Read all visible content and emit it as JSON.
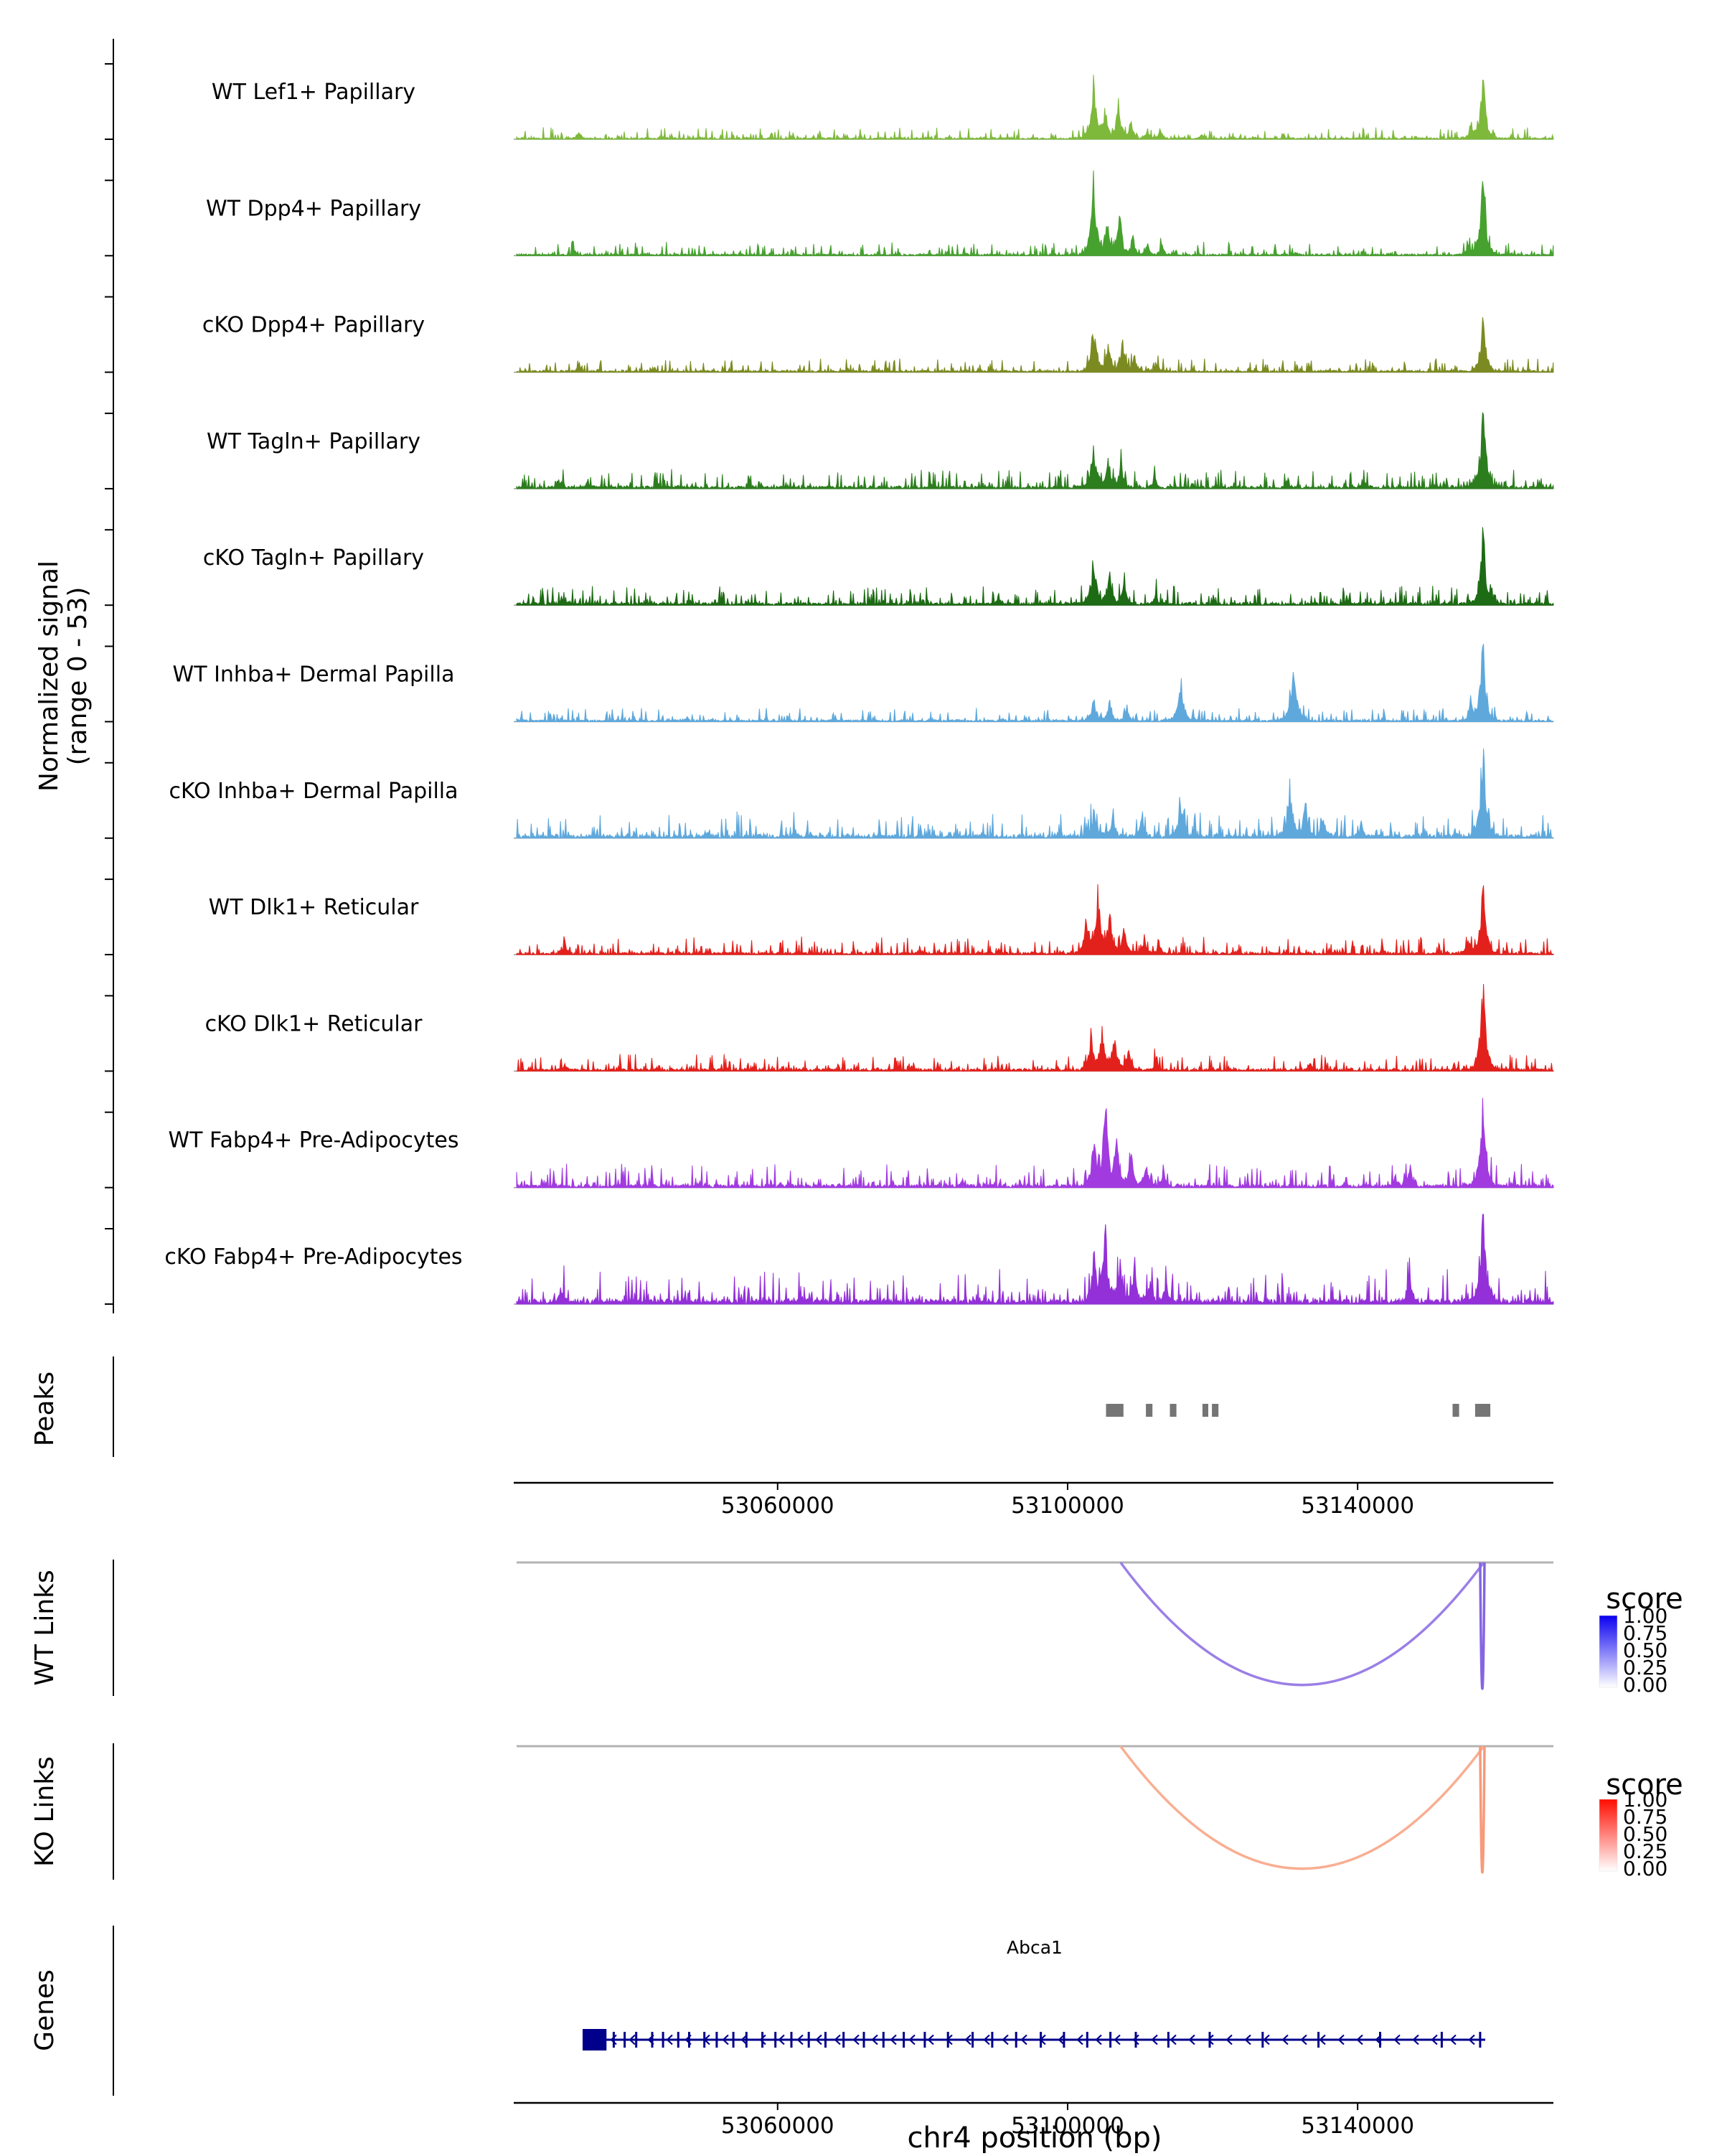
{
  "labels": {
    "signal_axis_line1": "Normalized signal",
    "signal_axis_line2": "(range 0 - 53)",
    "peaks": "Peaks",
    "wt_links": "WT Links",
    "ko_links": "KO Links",
    "genes": "Genes",
    "x_axis_title": "chr4 position (bp)"
  },
  "chart_data": {
    "type": "area",
    "description": "Single-cell ATAC-seq coverage tracks at the Abca1 locus with called peaks, WT and KO co-accessibility links, and gene annotation",
    "region": {
      "chrom": "chr4",
      "start": 53024000,
      "end": 53167000
    },
    "signal_range": "0 - 53",
    "axis_ticks": [
      {
        "bp": 53060000,
        "label": "53060000"
      },
      {
        "bp": 53100000,
        "label": "53100000"
      },
      {
        "bp": 53140000,
        "label": "53140000"
      }
    ],
    "tracks": [
      {
        "label": "WT Lef1+ Papillary",
        "color": "#7EB93C",
        "noise": 0.03,
        "peaks": [
          [
            53032600,
            0.1,
            250
          ],
          [
            53103600,
            0.55,
            450
          ],
          [
            53105200,
            0.28,
            350
          ],
          [
            53107000,
            0.38,
            380
          ],
          [
            53108800,
            0.16,
            300
          ],
          [
            53111000,
            0.1,
            250
          ],
          [
            53112800,
            0.12,
            250
          ],
          [
            53118500,
            0.06,
            250
          ],
          [
            53155600,
            0.18,
            260
          ],
          [
            53157300,
            0.72,
            420
          ]
        ]
      },
      {
        "label": "WT Dpp4+ Papillary",
        "color": "#46A12E",
        "noise": 0.035,
        "peaks": [
          [
            53032000,
            0.06,
            250
          ],
          [
            53103600,
            0.8,
            450
          ],
          [
            53105400,
            0.34,
            350
          ],
          [
            53107200,
            0.42,
            380
          ],
          [
            53109000,
            0.2,
            300
          ],
          [
            53111000,
            0.14,
            250
          ],
          [
            53113000,
            0.16,
            250
          ],
          [
            53155200,
            0.14,
            260
          ],
          [
            53157300,
            0.85,
            430
          ]
        ]
      },
      {
        "label": "cKO Dpp4+ Papillary",
        "color": "#7C8B21",
        "noise": 0.035,
        "peaks": [
          [
            53032600,
            0.08,
            250
          ],
          [
            53103600,
            0.46,
            450
          ],
          [
            53105600,
            0.3,
            350
          ],
          [
            53107600,
            0.34,
            380
          ],
          [
            53109200,
            0.16,
            300
          ],
          [
            53112400,
            0.1,
            250
          ],
          [
            53157300,
            0.56,
            420
          ]
        ]
      },
      {
        "label": "WT Tagln+ Papillary",
        "color": "#2C7D1E",
        "noise": 0.05,
        "peaks": [
          [
            53029800,
            0.1,
            300
          ],
          [
            53033800,
            0.08,
            250
          ],
          [
            53103600,
            0.46,
            450
          ],
          [
            53105600,
            0.3,
            350
          ],
          [
            53107400,
            0.26,
            350
          ],
          [
            53112000,
            0.14,
            250
          ],
          [
            53130500,
            0.07,
            250
          ],
          [
            53141000,
            0.07,
            250
          ],
          [
            53157300,
            0.95,
            430
          ]
        ]
      },
      {
        "label": "cKO Tagln+ Papillary",
        "color": "#1D6B14",
        "noise": 0.05,
        "peaks": [
          [
            53030200,
            0.07,
            250
          ],
          [
            53090500,
            0.07,
            250
          ],
          [
            53103600,
            0.5,
            450
          ],
          [
            53105800,
            0.3,
            350
          ],
          [
            53107800,
            0.24,
            350
          ],
          [
            53112200,
            0.12,
            250
          ],
          [
            53157300,
            0.8,
            430
          ]
        ]
      },
      {
        "label": "WT Inhba+ Dermal Papilla",
        "color": "#5FA8DC",
        "noise": 0.035,
        "peaks": [
          [
            53047500,
            0.05,
            250
          ],
          [
            53103600,
            0.24,
            400
          ],
          [
            53105800,
            0.2,
            350
          ],
          [
            53108200,
            0.14,
            350
          ],
          [
            53115600,
            0.45,
            420
          ],
          [
            53131200,
            0.5,
            520
          ],
          [
            53155600,
            0.22,
            280
          ],
          [
            53157300,
            0.88,
            430
          ]
        ]
      },
      {
        "label": "cKO Inhba+ Dermal Papilla",
        "color": "#5FA8DC",
        "noise": 0.065,
        "peaks": [
          [
            53050500,
            0.07,
            250
          ],
          [
            53062500,
            0.07,
            250
          ],
          [
            53103600,
            0.3,
            400
          ],
          [
            53106200,
            0.24,
            350
          ],
          [
            53110200,
            0.18,
            350
          ],
          [
            53115600,
            0.34,
            420
          ],
          [
            53130600,
            0.56,
            420
          ],
          [
            53132800,
            0.4,
            350
          ],
          [
            53135200,
            0.24,
            350
          ],
          [
            53140500,
            0.14,
            300
          ],
          [
            53157300,
            0.95,
            430
          ]
        ]
      },
      {
        "label": "WT Dlk1+ Reticular",
        "color": "#E3211C",
        "noise": 0.045,
        "peaks": [
          [
            53030600,
            0.12,
            260
          ],
          [
            53090500,
            0.05,
            250
          ],
          [
            53102600,
            0.38,
            380
          ],
          [
            53104200,
            0.62,
            400
          ],
          [
            53105800,
            0.44,
            380
          ],
          [
            53107800,
            0.3,
            360
          ],
          [
            53110600,
            0.18,
            300
          ],
          [
            53112600,
            0.13,
            260
          ],
          [
            53143500,
            0.07,
            250
          ],
          [
            53155200,
            0.18,
            270
          ],
          [
            53157300,
            0.74,
            420
          ]
        ]
      },
      {
        "label": "cKO Dlk1+ Reticular",
        "color": "#E3211C",
        "noise": 0.045,
        "peaks": [
          [
            53030600,
            0.08,
            250
          ],
          [
            53103200,
            0.36,
            380
          ],
          [
            53104800,
            0.47,
            400
          ],
          [
            53106400,
            0.4,
            380
          ],
          [
            53108400,
            0.25,
            360
          ],
          [
            53112200,
            0.14,
            260
          ],
          [
            53133500,
            0.09,
            250
          ],
          [
            53157300,
            0.95,
            420
          ]
        ]
      },
      {
        "label": "WT Fabp4+ Pre-Adipocytes",
        "color": "#A13BE0",
        "noise": 0.06,
        "peaks": [
          [
            53060500,
            0.05,
            250
          ],
          [
            53085500,
            0.07,
            250
          ],
          [
            53103600,
            0.55,
            380
          ],
          [
            53105200,
            0.92,
            420
          ],
          [
            53106800,
            0.46,
            380
          ],
          [
            53108800,
            0.34,
            360
          ],
          [
            53110800,
            0.25,
            330
          ],
          [
            53113200,
            0.19,
            280
          ],
          [
            53145200,
            0.13,
            260
          ],
          [
            53147200,
            0.25,
            330
          ],
          [
            53157300,
            1.0,
            430
          ]
        ]
      },
      {
        "label": "cKO Fabp4+ Pre-Adipocytes",
        "color": "#9330D8",
        "noise": 0.09,
        "peaks": [
          [
            53030200,
            0.1,
            400
          ],
          [
            53103600,
            0.5,
            380
          ],
          [
            53105200,
            0.82,
            420
          ],
          [
            53107200,
            0.46,
            380
          ],
          [
            53109200,
            0.34,
            360
          ],
          [
            53111400,
            0.25,
            330
          ],
          [
            53113600,
            0.2,
            280
          ],
          [
            53147200,
            0.3,
            330
          ],
          [
            53157300,
            1.0,
            430
          ]
        ]
      }
    ],
    "peak_boxes": [
      [
        53105300,
        53107700
      ],
      [
        53110800,
        53111700
      ],
      [
        53114100,
        53115000
      ],
      [
        53118600,
        53119400
      ],
      [
        53119900,
        53120800
      ],
      [
        53153100,
        53154000
      ],
      [
        53156200,
        53158300
      ]
    ],
    "peak_color": "#757575",
    "wt_links": {
      "legend_title": "score",
      "legend_ticks": [
        "1.00",
        "0.75",
        "0.50",
        "0.25",
        "0.00"
      ],
      "gradient_top": "#0A00F0",
      "gradient_bottom": "#FFFFFF",
      "links": [
        {
          "start": 53107300,
          "end": 53157400,
          "score": 0.45,
          "color": "#9B7FE6",
          "depth": 0.97
        },
        {
          "start": 53156900,
          "end": 53157500,
          "score": 0.75,
          "color": "#8466E2",
          "depth": 1.0
        }
      ]
    },
    "ko_links": {
      "legend_title": "score",
      "legend_ticks": [
        "1.00",
        "0.75",
        "0.50",
        "0.25",
        "0.00"
      ],
      "gradient_top": "#FF0D00",
      "gradient_bottom": "#FFFFFF",
      "links": [
        {
          "start": 53107300,
          "end": 53157400,
          "score": 0.35,
          "color": "#F9AE92",
          "depth": 0.97
        },
        {
          "start": 53156900,
          "end": 53157500,
          "score": 0.6,
          "color": "#F79A7A",
          "depth": 1.0
        }
      ]
    },
    "gene": {
      "name": "Abca1",
      "start": 53033100,
      "end": 53157600,
      "strand": "-",
      "color": "#00008B",
      "utr_box": [
        53033100,
        53036400
      ],
      "exons": [
        53037400,
        53038900,
        53040500,
        53042700,
        53044200,
        53046300,
        53047800,
        53049900,
        53051600,
        53053900,
        53055700,
        53057900,
        53059700,
        53061900,
        53064300,
        53066600,
        53069100,
        53071900,
        53074600,
        53077400,
        53080300,
        53083500,
        53086900,
        53089600,
        53092900,
        53096300,
        53099500,
        53102700,
        53105900,
        53109400,
        53113900,
        53119600,
        53126900,
        53134600,
        53143100,
        53151600,
        53156900
      ]
    }
  }
}
